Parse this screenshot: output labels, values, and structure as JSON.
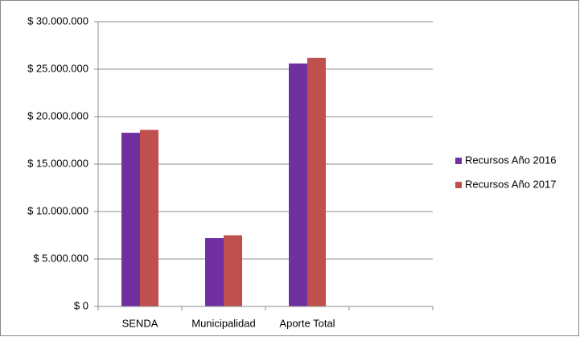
{
  "chart_data": {
    "type": "bar",
    "categories": [
      "SENDA",
      "Municipalidad",
      "Aporte Total",
      null
    ],
    "series": [
      {
        "name": "Recursos Año 2016",
        "color": "#7030a0",
        "values": [
          18300000,
          7200000,
          25600000,
          null
        ]
      },
      {
        "name": "Recursos Año 2017",
        "color": "#c0504d",
        "values": [
          18600000,
          7500000,
          26200000,
          null
        ]
      }
    ],
    "ylim": [
      0,
      30000000
    ],
    "yticks": [
      {
        "value": 0,
        "label": "$ 0"
      },
      {
        "value": 5000000,
        "label": "$ 5.000.000"
      },
      {
        "value": 10000000,
        "label": "$ 10.000.000"
      },
      {
        "value": 15000000,
        "label": "$ 15.000.000"
      },
      {
        "value": 20000000,
        "label": "$ 20.000.000"
      },
      {
        "value": 25000000,
        "label": "$ 25.000.000"
      },
      {
        "value": 30000000,
        "label": "$ 30.000.000"
      }
    ],
    "grid": true,
    "legend": "right"
  }
}
